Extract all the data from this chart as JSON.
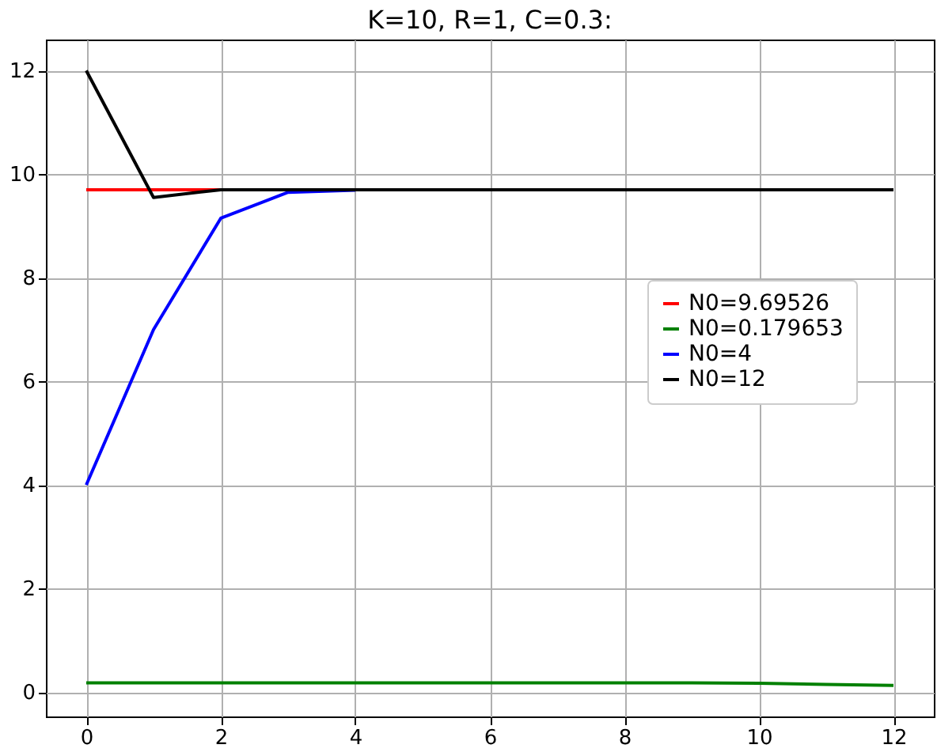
{
  "chart_data": {
    "type": "line",
    "title": "K=10, R=1, C=0.3:",
    "x": [
      0,
      1,
      2,
      3,
      4,
      5,
      6,
      7,
      8,
      9,
      10,
      11,
      12
    ],
    "series": [
      {
        "name": "N0=9.69526",
        "color": "#ff0000",
        "values": [
          9.7,
          9.7,
          9.7,
          null,
          null,
          null,
          null,
          null,
          null,
          null,
          null,
          null,
          null
        ]
      },
      {
        "name": "N0=0.179653",
        "color": "#008000",
        "values": [
          0.18,
          0.18,
          0.18,
          0.18,
          0.18,
          0.18,
          0.18,
          0.18,
          0.18,
          0.18,
          0.17,
          0.15,
          0.13
        ]
      },
      {
        "name": "N0=4",
        "color": "#0000ff",
        "values": [
          4,
          7,
          9.15,
          9.65,
          9.69,
          null,
          null,
          null,
          null,
          null,
          null,
          null,
          null
        ]
      },
      {
        "name": "N0=12",
        "color": "#000000",
        "values": [
          12,
          9.55,
          9.7,
          9.7,
          9.7,
          9.7,
          9.7,
          9.7,
          9.7,
          9.7,
          9.7,
          9.7,
          9.7
        ]
      }
    ],
    "xlim": [
      -0.6,
      12.6
    ],
    "xticks": [
      0,
      2,
      4,
      6,
      8,
      10,
      12
    ],
    "ylim": [
      -0.47,
      12.6
    ],
    "yticks": [
      0,
      2,
      4,
      6,
      8,
      10,
      12
    ],
    "grid": true,
    "legend": "right"
  }
}
